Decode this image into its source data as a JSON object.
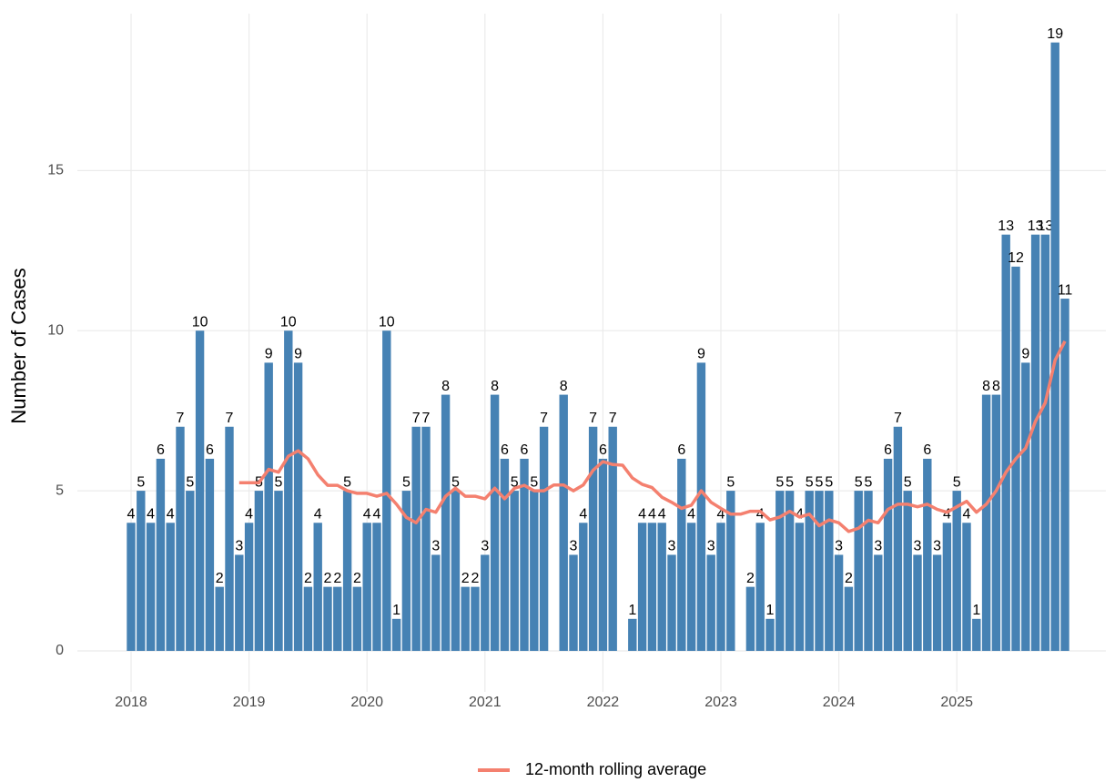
{
  "chart_data": {
    "type": "bar",
    "y_label": "Number of Cases",
    "categories": [
      "2018",
      null,
      null,
      null,
      null,
      null,
      null,
      null,
      null,
      null,
      null,
      null,
      "2019",
      null,
      null,
      null,
      null,
      null,
      null,
      null,
      null,
      null,
      null,
      null,
      "2020",
      null,
      null,
      null,
      null,
      null,
      null,
      null,
      null,
      null,
      null,
      null,
      "2021",
      null,
      null,
      null,
      null,
      null,
      null,
      null,
      null,
      null,
      null,
      null,
      "2022",
      null,
      null,
      null,
      null,
      null,
      null,
      null,
      null,
      null,
      null,
      null,
      "2023",
      null,
      null,
      null,
      null,
      null,
      null,
      null,
      null,
      null,
      null,
      null,
      "2024",
      null,
      null,
      null,
      null,
      null,
      null,
      null,
      null,
      null,
      null,
      null,
      "2025",
      null,
      null,
      null,
      null,
      null,
      null,
      null,
      null,
      null,
      null,
      null
    ],
    "series": [
      {
        "type": "bar",
        "color": "#4682b4",
        "values": [
          4,
          5,
          4,
          6,
          4,
          7,
          5,
          10,
          6,
          2,
          7,
          3,
          4,
          5,
          9,
          5,
          10,
          9,
          2,
          4,
          2,
          2,
          5,
          2,
          4,
          4,
          10,
          1,
          5,
          7,
          7,
          3,
          8,
          5,
          2,
          2,
          3,
          8,
          6,
          5,
          6,
          5,
          7,
          null,
          8,
          3,
          4,
          7,
          6,
          7,
          null,
          1,
          4,
          4,
          4,
          3,
          6,
          4,
          9,
          3,
          4,
          5,
          null,
          2,
          4,
          1,
          5,
          5,
          4,
          5,
          5,
          5,
          3,
          2,
          5,
          5,
          3,
          6,
          7,
          5,
          3,
          6,
          3,
          4,
          5,
          4,
          1,
          8,
          8,
          13,
          12,
          9,
          13,
          13,
          19,
          11
        ]
      },
      {
        "type": "line",
        "name": "12-month rolling average",
        "color": "#f4806f",
        "values": [
          null,
          null,
          null,
          null,
          null,
          null,
          null,
          null,
          null,
          null,
          null,
          5.25,
          5.25,
          5.25,
          5.67,
          5.58,
          6.08,
          6.25,
          6.0,
          5.5,
          5.17,
          5.17,
          5.0,
          4.92,
          4.92,
          4.83,
          4.92,
          4.58,
          4.17,
          4.0,
          4.42,
          4.33,
          4.83,
          5.08,
          4.83,
          4.83,
          4.75,
          5.08,
          4.75,
          5.08,
          5.17,
          5.0,
          5.0,
          5.18,
          5.18,
          5.0,
          5.18,
          5.64,
          5.91,
          5.82,
          5.8,
          5.4,
          5.2,
          5.1,
          4.8,
          4.64,
          4.45,
          4.55,
          5.0,
          4.64,
          4.45,
          4.27,
          4.27,
          4.36,
          4.36,
          4.09,
          4.18,
          4.36,
          4.18,
          4.27,
          3.91,
          4.09,
          4.0,
          3.73,
          3.83,
          4.08,
          4.0,
          4.42,
          4.58,
          4.58,
          4.5,
          4.58,
          4.42,
          4.33,
          4.5,
          4.67,
          4.33,
          4.58,
          5.0,
          5.58,
          6.0,
          6.33,
          7.17,
          7.75,
          9.08,
          9.67
        ]
      }
    ],
    "ylim": [
      -1.28,
      19.9
    ],
    "yticks": [
      0,
      5,
      10,
      15
    ],
    "grid": true,
    "legend": "bottom"
  }
}
